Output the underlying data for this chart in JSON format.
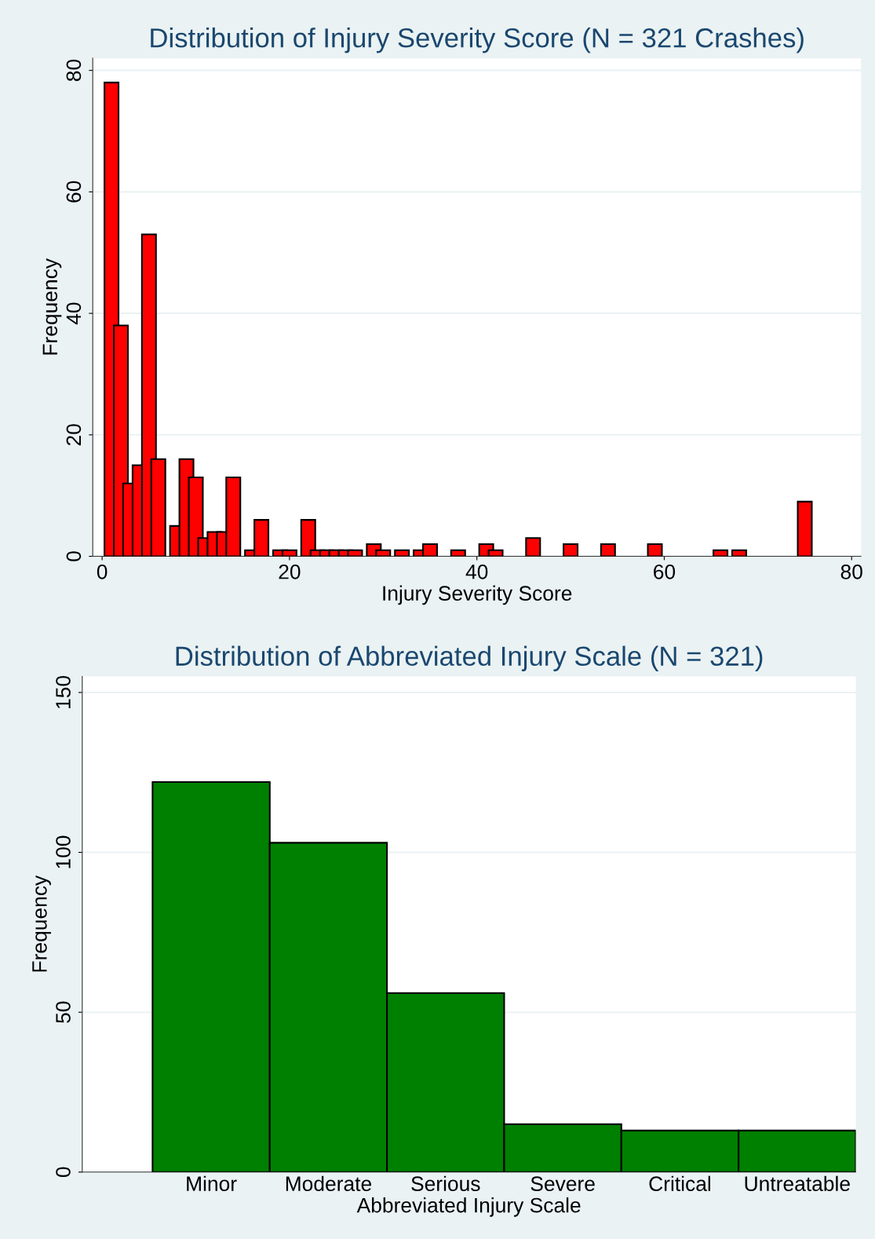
{
  "chart_data": [
    {
      "type": "bar",
      "title": "Distribution of Injury Severity Score (N = 321 Crashes)",
      "xlabel": "Injury Severity Score",
      "ylabel": "Frequency",
      "x": [
        1,
        2,
        3,
        4,
        5,
        6,
        8,
        9,
        10,
        11,
        12,
        13,
        14,
        16,
        17,
        19,
        20,
        22,
        23,
        24,
        25,
        26,
        27,
        29,
        30,
        32,
        34,
        35,
        38,
        41,
        42,
        46,
        50,
        54,
        59,
        66,
        68,
        75
      ],
      "values": [
        78,
        38,
        12,
        15,
        53,
        16,
        5,
        16,
        13,
        3,
        4,
        4,
        13,
        1,
        6,
        1,
        1,
        6,
        1,
        1,
        1,
        1,
        1,
        2,
        1,
        1,
        1,
        2,
        1,
        2,
        1,
        3,
        2,
        2,
        2,
        1,
        1,
        9
      ],
      "color": "#ff0000",
      "xlim": [
        -1,
        81
      ],
      "xticks": [
        0,
        20,
        40,
        60,
        80
      ],
      "ylim": [
        0,
        82
      ],
      "yticks": [
        0,
        20,
        40,
        60,
        80
      ],
      "grid": "y"
    },
    {
      "type": "bar",
      "title": "Distribution of Abbreviated Injury Scale (N = 321)",
      "xlabel": "Abbreviated Injury Scale",
      "ylabel": "Frequency",
      "categories": [
        "Minor",
        "Moderate",
        "Serious",
        "Severe",
        "Critical",
        "Untreatable"
      ],
      "values": [
        122,
        103,
        56,
        15,
        13,
        13
      ],
      "color": "#008000",
      "ylim": [
        0,
        155
      ],
      "yticks": [
        0,
        50,
        100,
        150
      ],
      "grid": "y"
    }
  ]
}
